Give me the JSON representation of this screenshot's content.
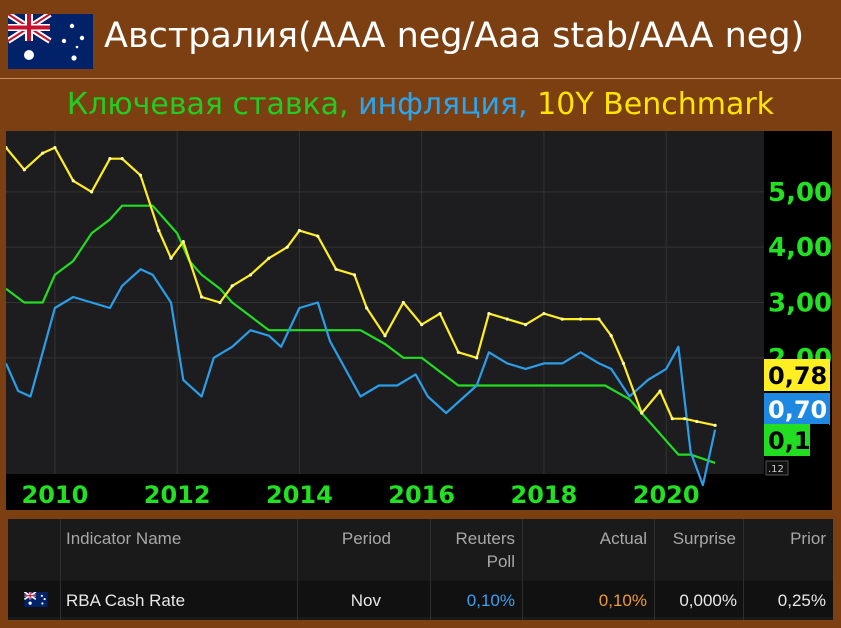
{
  "title": "Австралия(AAA neg/Aaa stab/AAA neg)",
  "subtitle": {
    "green": "Ключевая ставка,",
    "blue": "инфляция,",
    "yellow": "10Y Benchmark"
  },
  "colors": {
    "policy_rate": "#22dd22",
    "inflation": "#2a9ee8",
    "benchmark": "#ffee22",
    "background": "#7b3f12"
  },
  "chart_data": {
    "type": "line",
    "xlim": [
      2009.2,
      2021.6
    ],
    "ylim": [
      -0.1,
      6.1
    ],
    "x_ticks": [
      "2010",
      "2012",
      "2014",
      "2016",
      "2018",
      "2020"
    ],
    "y_ticks": [
      "2,00",
      "3,00",
      "4,00",
      "5,00"
    ],
    "grid": true,
    "series": [
      {
        "name": "Ключевая ставка",
        "color": "#22dd22",
        "x": [
          2009.2,
          2009.5,
          2009.8,
          2010.0,
          2010.3,
          2010.6,
          2010.9,
          2011.1,
          2011.6,
          2011.8,
          2012.0,
          2012.2,
          2012.4,
          2012.7,
          2012.9,
          2013.2,
          2013.5,
          2013.7,
          2014.0,
          2015.0,
          2015.4,
          2015.7,
          2016.0,
          2016.3,
          2016.6,
          2016.9,
          2017.0,
          2018.0,
          2019.0,
          2019.4,
          2019.6,
          2019.8,
          2020.0,
          2020.2,
          2020.4,
          2020.8
        ],
        "y": [
          3.25,
          3.0,
          3.0,
          3.5,
          3.75,
          4.25,
          4.5,
          4.75,
          4.75,
          4.5,
          4.25,
          3.75,
          3.5,
          3.25,
          3.0,
          2.75,
          2.5,
          2.5,
          2.5,
          2.5,
          2.25,
          2.0,
          2.0,
          1.75,
          1.5,
          1.5,
          1.5,
          1.5,
          1.5,
          1.25,
          1.0,
          0.75,
          0.5,
          0.25,
          0.25,
          0.1
        ]
      },
      {
        "name": "Инфляция",
        "color": "#2a9ee8",
        "x": [
          2009.2,
          2009.4,
          2009.6,
          2010.0,
          2010.3,
          2010.6,
          2010.9,
          2011.1,
          2011.4,
          2011.6,
          2011.9,
          2012.1,
          2012.4,
          2012.6,
          2012.9,
          2013.2,
          2013.5,
          2013.7,
          2014.0,
          2014.3,
          2014.5,
          2014.8,
          2015.0,
          2015.3,
          2015.6,
          2015.9,
          2016.1,
          2016.4,
          2016.7,
          2016.9,
          2017.1,
          2017.4,
          2017.7,
          2018.0,
          2018.3,
          2018.6,
          2018.9,
          2019.1,
          2019.4,
          2019.7,
          2020.0,
          2020.2,
          2020.4,
          2020.6,
          2020.8
        ],
        "y": [
          1.9,
          1.4,
          1.3,
          2.9,
          3.1,
          3.0,
          2.9,
          3.3,
          3.6,
          3.5,
          3.0,
          1.6,
          1.3,
          2.0,
          2.2,
          2.5,
          2.4,
          2.2,
          2.9,
          3.0,
          2.3,
          1.7,
          1.3,
          1.5,
          1.5,
          1.7,
          1.3,
          1.0,
          1.3,
          1.5,
          2.1,
          1.9,
          1.8,
          1.9,
          1.9,
          2.1,
          1.9,
          1.8,
          1.3,
          1.6,
          1.8,
          2.2,
          0.3,
          -0.3,
          0.7
        ]
      },
      {
        "name": "10Y Benchmark",
        "color": "#ffee22",
        "x": [
          2009.2,
          2009.5,
          2009.8,
          2010.0,
          2010.3,
          2010.6,
          2010.9,
          2011.1,
          2011.4,
          2011.7,
          2011.9,
          2012.1,
          2012.4,
          2012.7,
          2012.9,
          2013.2,
          2013.5,
          2013.8,
          2014.0,
          2014.3,
          2014.6,
          2014.9,
          2015.1,
          2015.4,
          2015.7,
          2016.0,
          2016.3,
          2016.6,
          2016.9,
          2017.1,
          2017.4,
          2017.7,
          2018.0,
          2018.3,
          2018.6,
          2018.9,
          2019.1,
          2019.3,
          2019.6,
          2019.9,
          2020.1,
          2020.3,
          2020.5,
          2020.8
        ],
        "y": [
          5.8,
          5.4,
          5.7,
          5.8,
          5.2,
          5.0,
          5.6,
          5.6,
          5.3,
          4.3,
          3.8,
          4.1,
          3.1,
          3.0,
          3.3,
          3.5,
          3.8,
          4.0,
          4.3,
          4.2,
          3.6,
          3.5,
          2.9,
          2.4,
          3.0,
          2.6,
          2.8,
          2.1,
          2.0,
          2.8,
          2.7,
          2.6,
          2.8,
          2.7,
          2.7,
          2.7,
          2.4,
          1.9,
          1.0,
          1.4,
          0.9,
          0.9,
          0.85,
          0.78
        ]
      }
    ],
    "last_value_labels": [
      {
        "text": "0,78",
        "series": "10Y Benchmark"
      },
      {
        "text": "0,70",
        "series": "Инфляция"
      },
      {
        "text": "0,1",
        "series": "Ключевая ставка"
      }
    ],
    "small_label": ".12"
  },
  "table": {
    "headers": {
      "indicator": "Indicator Name",
      "period": "Period",
      "reuters_line1": "Reuters",
      "reuters_line2": "Poll",
      "actual": "Actual",
      "surprise": "Surprise",
      "prior": "Prior"
    },
    "rows": [
      {
        "indicator": "RBA Cash Rate",
        "period": "Nov",
        "reuters_poll": "0,10%",
        "actual": "0,10%",
        "surprise": "0,000%",
        "prior": "0,25%"
      }
    ]
  }
}
